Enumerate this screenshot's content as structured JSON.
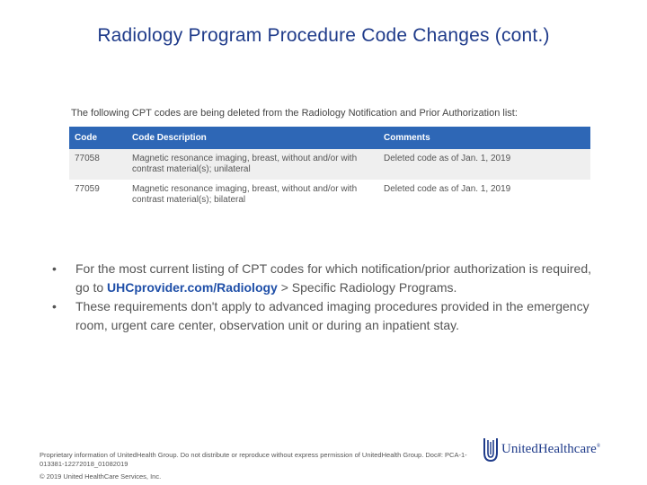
{
  "slide": {
    "title": "Radiology Program Procedure Code Changes (cont.)"
  },
  "table": {
    "caption": "The following CPT codes are being deleted from the Radiology Notification and Prior Authorization list:",
    "headers": {
      "code": "Code",
      "description": "Code Description",
      "comments": "Comments"
    },
    "rows": [
      {
        "code": "77058",
        "description": "Magnetic resonance imaging, breast, without and/or with contrast material(s); unilateral",
        "comments": "Deleted code as of Jan. 1, 2019"
      },
      {
        "code": "77059",
        "description": "Magnetic resonance imaging, breast, without and/or with contrast material(s); bilateral",
        "comments": "Deleted code as of Jan. 1, 2019"
      }
    ],
    "colors": {
      "header_bg": "#2e67b6",
      "row_alt_bg": "#efefef"
    }
  },
  "bullets": {
    "marker": "•",
    "item1_before": "For the most current listing of CPT codes for which notification/prior authorization is required, go to ",
    "item1_link": "UHCprovider.com/Radiology",
    "item1_after": " > Specific Radiology Programs.",
    "item2": "These requirements don't apply to advanced imaging procedures provided in the emergency room, urgent care center, observation unit or during an inpatient stay."
  },
  "footer": {
    "note": "Proprietary information of UnitedHealth Group. Do not distribute or reproduce without express permission of UnitedHealth Group. Doc#: PCA-1-013381-12272018_01082019",
    "copyright": "© 2019 United HealthCare Services, Inc.",
    "logo_text": "UnitedHealthcare",
    "logo_reg": "®",
    "brand_color": "#1f3b8a"
  }
}
